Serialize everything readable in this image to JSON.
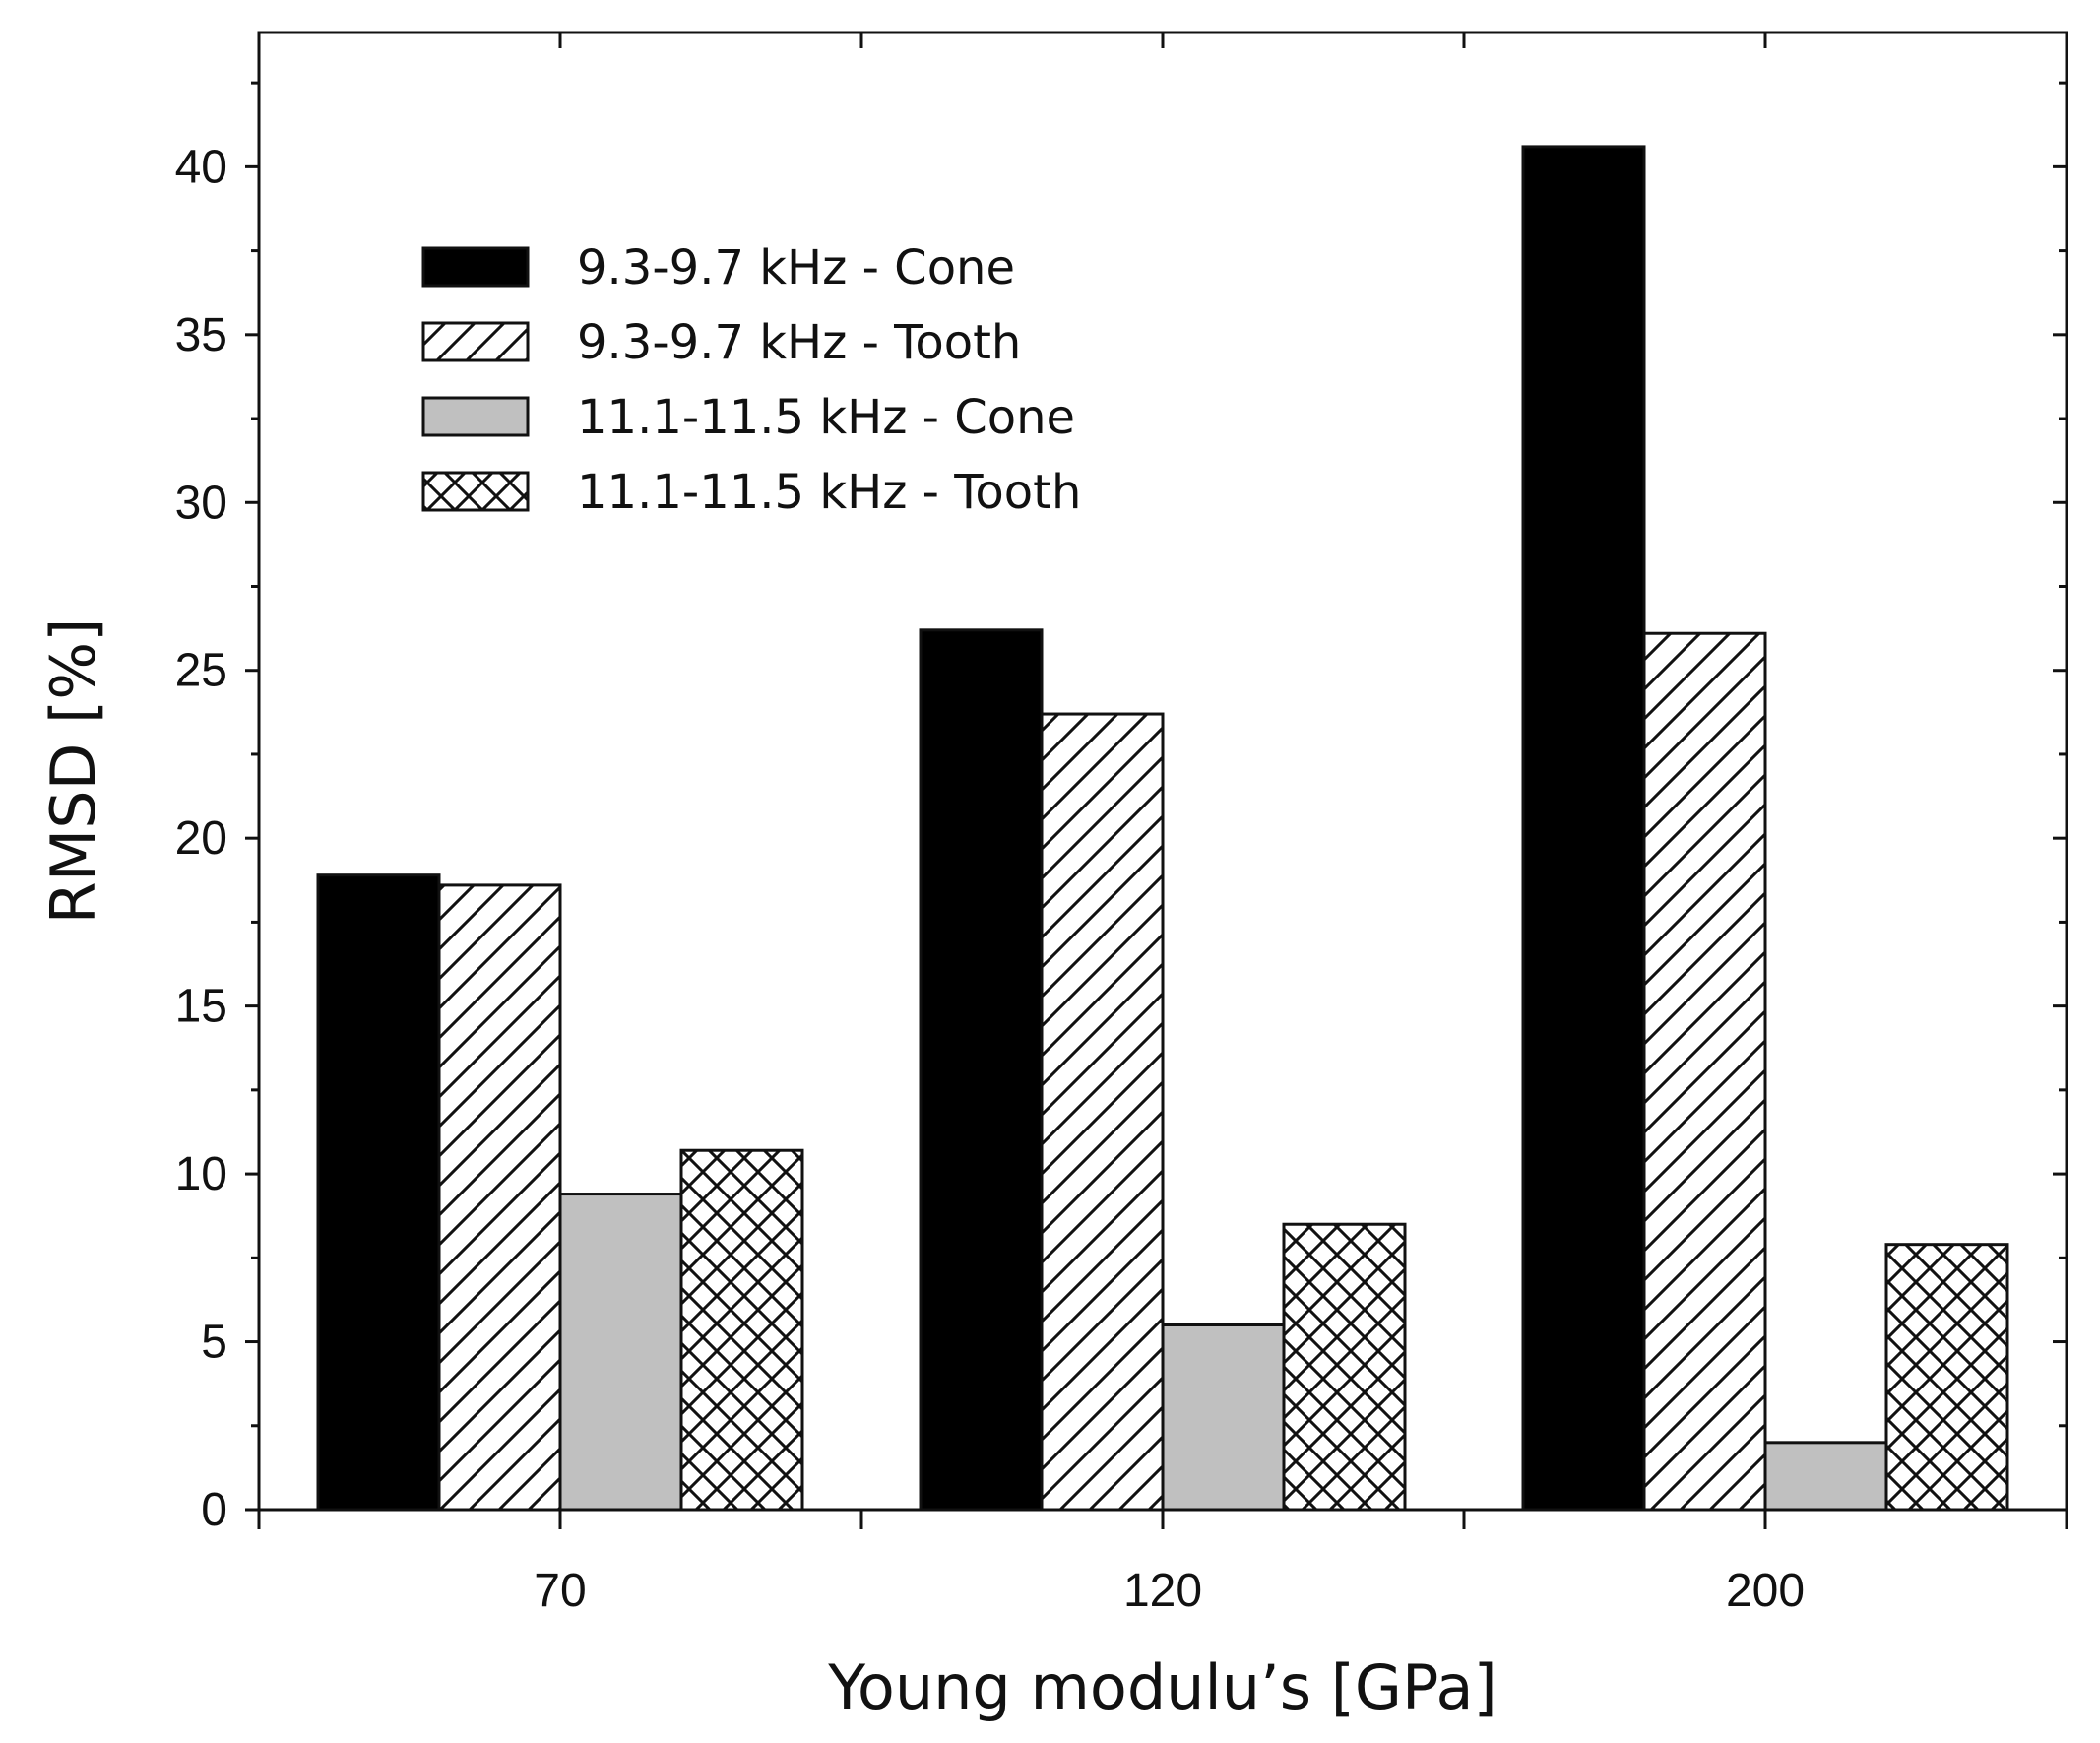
{
  "chart_data": {
    "type": "bar",
    "title": "",
    "xlabel": "Young modulu’s [GPa]",
    "ylabel": "RMSD [%]",
    "ylim": [
      0,
      44
    ],
    "yticks": [
      0,
      5,
      10,
      15,
      20,
      25,
      30,
      35,
      40
    ],
    "categories": [
      "70",
      "120",
      "200"
    ],
    "legend_position": "top-left",
    "series": [
      {
        "name": "9.3-9.7 kHz - Cone",
        "pattern": "solid-black",
        "values": [
          18.9,
          26.2,
          40.6
        ]
      },
      {
        "name": "9.3-9.7 kHz - Tooth",
        "pattern": "diagonal-hatch",
        "values": [
          18.6,
          23.7,
          26.1
        ]
      },
      {
        "name": "11.1-11.5 kHz - Cone",
        "pattern": "solid-gray",
        "values": [
          9.4,
          5.5,
          2.0
        ]
      },
      {
        "name": "11.1-11.5 kHz - Tooth",
        "pattern": "cross-hatch",
        "values": [
          10.7,
          8.5,
          7.9
        ]
      }
    ],
    "colors": {
      "black": "#000000",
      "gray": "#c0c0c0",
      "stroke": "#111111",
      "background": "#ffffff"
    }
  }
}
